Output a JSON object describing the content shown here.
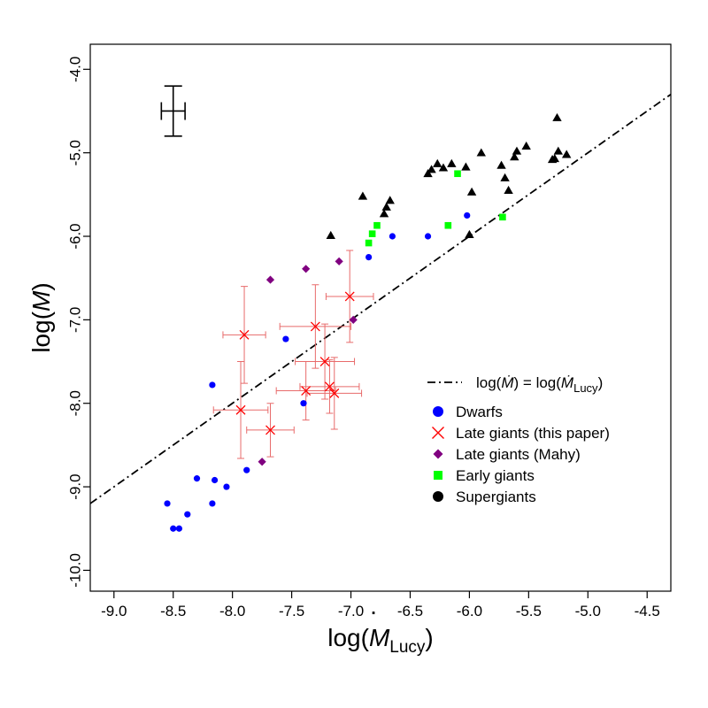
{
  "chart_data": {
    "type": "scatter",
    "title": "",
    "xlabel": {
      "base": "log(",
      "symbol": "M",
      "sub": "Lucy",
      "close": ")"
    },
    "ylabel": {
      "base": "log(",
      "symbol": "M",
      "close": ")"
    },
    "xlim": [
      -9.2,
      -4.3
    ],
    "ylim": [
      -10.25,
      -3.7
    ],
    "xticks": [
      -9.0,
      -8.5,
      -8.0,
      -7.5,
      -7.0,
      -6.5,
      -6.0,
      -5.5,
      -5.0,
      -4.5
    ],
    "xtick_labels": [
      "-9.0",
      "-8.5",
      "-8.0",
      "-7.5",
      "-7.0",
      "-6.5",
      "-6.0",
      "-5.5",
      "-5.0",
      "-4.5"
    ],
    "yticks": [
      -4.0,
      -5.0,
      -6.0,
      -7.0,
      -8.0,
      -9.0,
      -10.0
    ],
    "ytick_labels": [
      "-4.0",
      "-5.0",
      "-6.0",
      "-7.0",
      "-8.0",
      "-9.0",
      "-10.0"
    ],
    "reference_line": {
      "label_pre": "log(",
      "label_mid": ") = log(",
      "label_sub": "Lucy",
      "label_post": ")",
      "slope": 1,
      "intercept": 0
    },
    "typical_error": {
      "x": -8.5,
      "y": -4.5,
      "xerr": 0.1,
      "yerr": 0.3
    },
    "legend": [
      "Dwarfs",
      "Late giants (this paper)",
      "Late giants (Mahy)",
      "Early giants",
      "Supergiants"
    ],
    "series": [
      {
        "name": "Dwarfs",
        "marker": "circle",
        "color": "#0000ff",
        "points": [
          [
            -8.55,
            -9.2
          ],
          [
            -8.5,
            -9.5
          ],
          [
            -8.45,
            -9.5
          ],
          [
            -8.38,
            -9.33
          ],
          [
            -8.3,
            -8.9
          ],
          [
            -8.17,
            -9.2
          ],
          [
            -8.15,
            -8.92
          ],
          [
            -8.05,
            -9.0
          ],
          [
            -7.88,
            -8.8
          ],
          [
            -8.17,
            -7.78
          ],
          [
            -7.55,
            -7.23
          ],
          [
            -7.4,
            -8.0
          ],
          [
            -6.85,
            -6.25
          ],
          [
            -6.65,
            -6.0
          ],
          [
            -6.35,
            -6.0
          ],
          [
            -6.02,
            -5.75
          ]
        ]
      },
      {
        "name": "Late giants (this paper)",
        "marker": "x",
        "color": "#ff0000",
        "points": [
          [
            -7.9,
            -7.18,
            0.18,
            0.58
          ],
          [
            -7.93,
            -8.08,
            0.23,
            0.58
          ],
          [
            -7.68,
            -8.32,
            0.2,
            0.32
          ],
          [
            -7.38,
            -7.85,
            0.25,
            0.35
          ],
          [
            -7.3,
            -7.08,
            0.3,
            0.5
          ],
          [
            -7.22,
            -7.5,
            0.25,
            0.45
          ],
          [
            -7.18,
            -7.8,
            0.25,
            0.32
          ],
          [
            -7.14,
            -7.88,
            0.23,
            0.43
          ],
          [
            -7.01,
            -6.72,
            0.2,
            0.55
          ]
        ]
      },
      {
        "name": "Late giants (Mahy)",
        "marker": "diamond",
        "color": "#800080",
        "points": [
          [
            -7.68,
            -6.52
          ],
          [
            -7.38,
            -6.39
          ],
          [
            -7.1,
            -6.3
          ],
          [
            -6.98,
            -7.0
          ],
          [
            -7.75,
            -8.7
          ]
        ]
      },
      {
        "name": "Early giants",
        "marker": "square",
        "color": "#00ff00",
        "points": [
          [
            -6.1,
            -5.25
          ],
          [
            -6.78,
            -5.87
          ],
          [
            -6.82,
            -5.97
          ],
          [
            -6.85,
            -6.08
          ],
          [
            -6.18,
            -5.87
          ],
          [
            -5.72,
            -5.77
          ]
        ]
      },
      {
        "name": "Supergiants",
        "marker": "triangle",
        "color": "#000000",
        "points": [
          [
            -7.17,
            -5.99
          ],
          [
            -6.9,
            -5.52
          ],
          [
            -6.72,
            -5.73
          ],
          [
            -6.7,
            -5.65
          ],
          [
            -6.67,
            -5.57
          ],
          [
            -6.35,
            -5.25
          ],
          [
            -6.32,
            -5.2
          ],
          [
            -6.27,
            -5.13
          ],
          [
            -6.22,
            -5.18
          ],
          [
            -6.15,
            -5.13
          ],
          [
            -6.03,
            -5.17
          ],
          [
            -5.98,
            -5.47
          ],
          [
            -5.9,
            -5.0
          ],
          [
            -5.73,
            -5.15
          ],
          [
            -5.7,
            -5.3
          ],
          [
            -5.67,
            -5.45
          ],
          [
            -5.62,
            -5.05
          ],
          [
            -5.6,
            -4.98
          ],
          [
            -5.52,
            -4.92
          ],
          [
            -5.3,
            -5.08
          ],
          [
            -5.28,
            -5.07
          ],
          [
            -5.25,
            -4.98
          ],
          [
            -5.26,
            -4.58
          ],
          [
            -5.18,
            -5.02
          ],
          [
            -6.0,
            -5.98
          ]
        ]
      }
    ]
  }
}
